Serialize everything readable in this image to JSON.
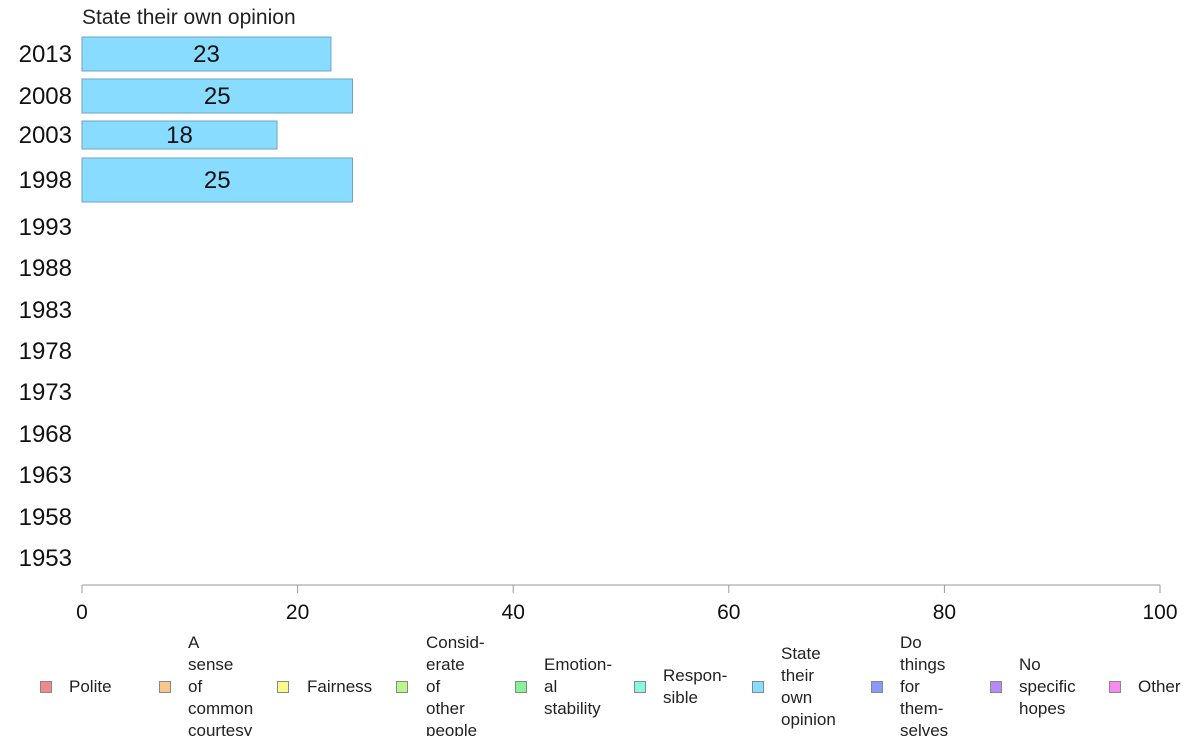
{
  "chart_data": {
    "type": "bar",
    "orientation": "horizontal",
    "title": "State their own opinion",
    "categories": [
      "2013",
      "2008",
      "2003",
      "1998",
      "1993",
      "1988",
      "1983",
      "1978",
      "1973",
      "1968",
      "1963",
      "1958",
      "1953"
    ],
    "series": [
      {
        "name": "State their own opinion",
        "values": [
          23,
          25,
          18,
          25,
          null,
          null,
          null,
          null,
          null,
          null,
          null,
          null,
          null
        ],
        "color": "#88dcff"
      }
    ],
    "data_labels": [
      "23",
      "25",
      "18",
      "25"
    ],
    "xlim": [
      0,
      100
    ],
    "xticks": [
      "0",
      "20",
      "40",
      "60",
      "80",
      "100"
    ],
    "xlabel": "",
    "ylabel": "",
    "grid": false,
    "legend_position": "bottom",
    "legend": [
      {
        "label": "Polite",
        "color": "#f08a8a"
      },
      {
        "label": "A sense of common courtesy",
        "color": "#f8c68a"
      },
      {
        "label": "Fairness",
        "color": "#fafa8a"
      },
      {
        "label": "Consid- erate of other people",
        "color": "#b8f88a"
      },
      {
        "label": "Emotion- al stability",
        "color": "#8af09a"
      },
      {
        "label": "Respon- sible",
        "color": "#8af8dc"
      },
      {
        "label": "State their own opinion",
        "color": "#88dcff"
      },
      {
        "label": "Do things for them- selves",
        "color": "#8a9af8"
      },
      {
        "label": "No specific hopes",
        "color": "#b88af8"
      },
      {
        "label": "Other",
        "color": "#f88af0"
      }
    ]
  }
}
